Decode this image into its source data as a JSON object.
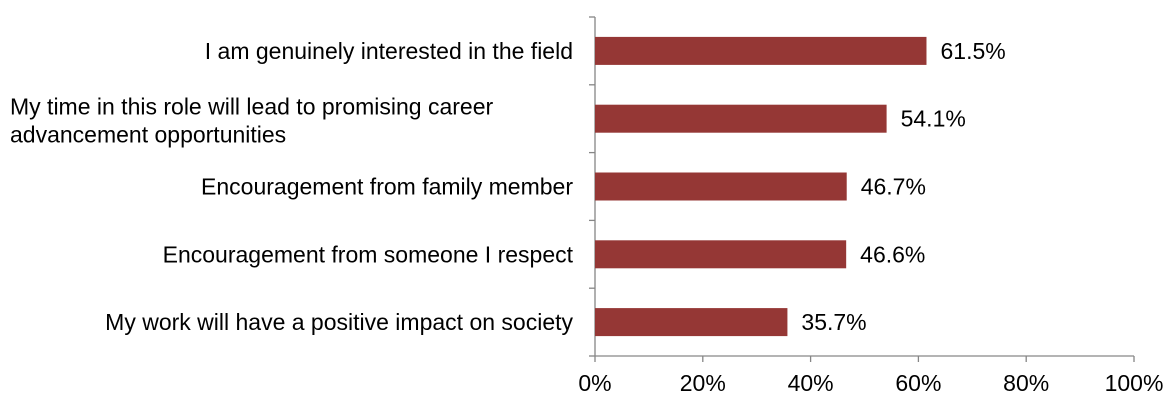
{
  "chart_data": {
    "type": "bar",
    "orientation": "horizontal",
    "categories": [
      "I am genuinely interested in the field",
      "My time in this role will lead to promising career advancement opportunities",
      "Encouragement from family member",
      "Encouragement from someone I respect",
      "My work will have a positive impact on society"
    ],
    "category_lines": [
      [
        "I am genuinely interested in the field"
      ],
      [
        "My time in this role will lead to promising career",
        "advancement opportunities"
      ],
      [
        "Encouragement from family member"
      ],
      [
        "Encouragement from someone I respect"
      ],
      [
        "My work will have a positive impact on society"
      ]
    ],
    "values": [
      61.5,
      54.1,
      46.7,
      46.6,
      35.7
    ],
    "value_labels": [
      "61.5%",
      "54.1%",
      "46.7%",
      "46.6%",
      "35.7%"
    ],
    "xlim": [
      0,
      100
    ],
    "x_ticks": [
      0,
      20,
      40,
      60,
      80,
      100
    ],
    "x_tick_labels": [
      "0%",
      "20%",
      "40%",
      "60%",
      "80%",
      "100%"
    ],
    "title": "",
    "xlabel": "",
    "ylabel": "",
    "grid": false,
    "legend": "none",
    "bar_color": "#953735"
  }
}
